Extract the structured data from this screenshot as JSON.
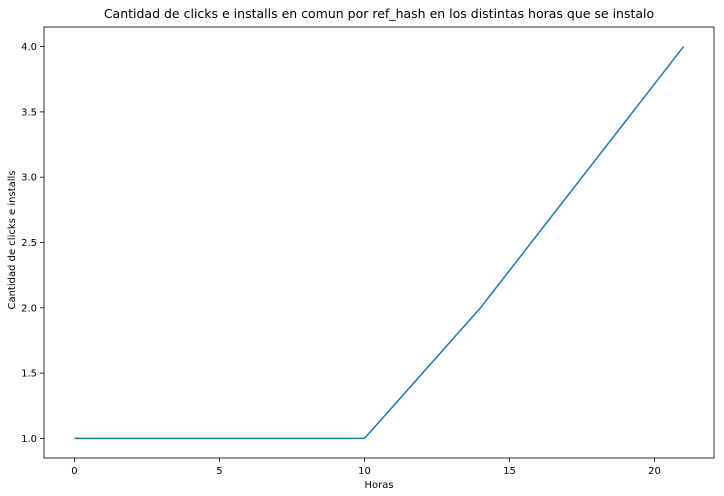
{
  "chart_data": {
    "type": "line",
    "title": "Cantidad de clicks e installs en comun por ref_hash en los distintas horas que se instalo",
    "xlabel": "Horas",
    "ylabel": "Cantidad de clicks e installs",
    "x": [
      0,
      10,
      14,
      21
    ],
    "series": [
      {
        "values": [
          1.0,
          1.0,
          2.0,
          4.0
        ]
      }
    ],
    "xlim": [
      -1.05,
      22.05
    ],
    "ylim": [
      0.85,
      4.15
    ],
    "xticks": [
      0,
      5,
      10,
      15,
      20
    ],
    "xtick_labels": [
      "0",
      "5",
      "10",
      "15",
      "20"
    ],
    "yticks": [
      1.0,
      1.5,
      2.0,
      2.5,
      3.0,
      3.5,
      4.0
    ],
    "ytick_labels": [
      "1.0",
      "1.5",
      "2.0",
      "2.5",
      "3.0",
      "3.5",
      "4.0"
    ],
    "grid": false,
    "legend": false,
    "line_color": "#1f77b4"
  }
}
